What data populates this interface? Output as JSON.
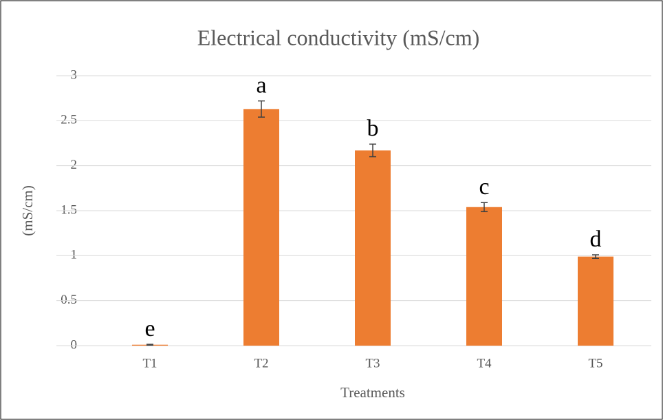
{
  "chart_data": {
    "type": "bar",
    "title": "Electrical conductivity (mS/cm)",
    "x_label": "Treatments",
    "y_label": "(mS/cm)",
    "categories": [
      "T1",
      "T2",
      "T3",
      "T4",
      "T5"
    ],
    "values": [
      0.01,
      2.63,
      2.17,
      1.54,
      0.99
    ],
    "errors": [
      0.005,
      0.09,
      0.07,
      0.05,
      0.02
    ],
    "annotations": [
      "e",
      "a",
      "b",
      "c",
      "d"
    ],
    "color": "#ed7d31",
    "ylim": [
      0,
      3
    ],
    "yticks": [
      0,
      0.5,
      1,
      1.5,
      2,
      2.5,
      3
    ],
    "grid": true
  }
}
